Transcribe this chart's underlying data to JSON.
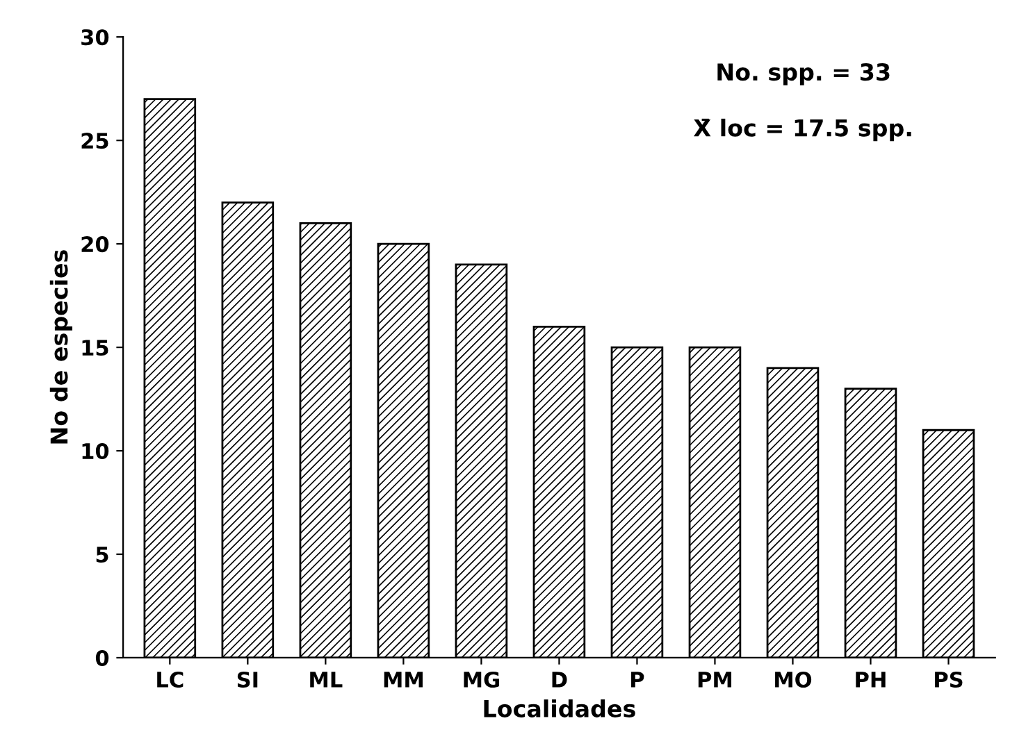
{
  "chart_data": {
    "type": "bar",
    "xlabel": "Localidades",
    "ylabel": "No de especies",
    "categories": [
      "LC",
      "SI",
      "ML",
      "MM",
      "MG",
      "D",
      "P",
      "PM",
      "MO",
      "PH",
      "PS"
    ],
    "values": [
      27,
      22,
      21,
      20,
      19,
      16,
      15,
      15,
      14,
      13,
      11
    ],
    "color": "#000000",
    "ylim": [
      0,
      30
    ],
    "yticks": [
      0,
      5,
      10,
      15,
      20,
      25,
      30
    ],
    "grid": false,
    "annotations": [
      "No. spp. = 33",
      "X̄ loc = 17.5 spp."
    ]
  }
}
